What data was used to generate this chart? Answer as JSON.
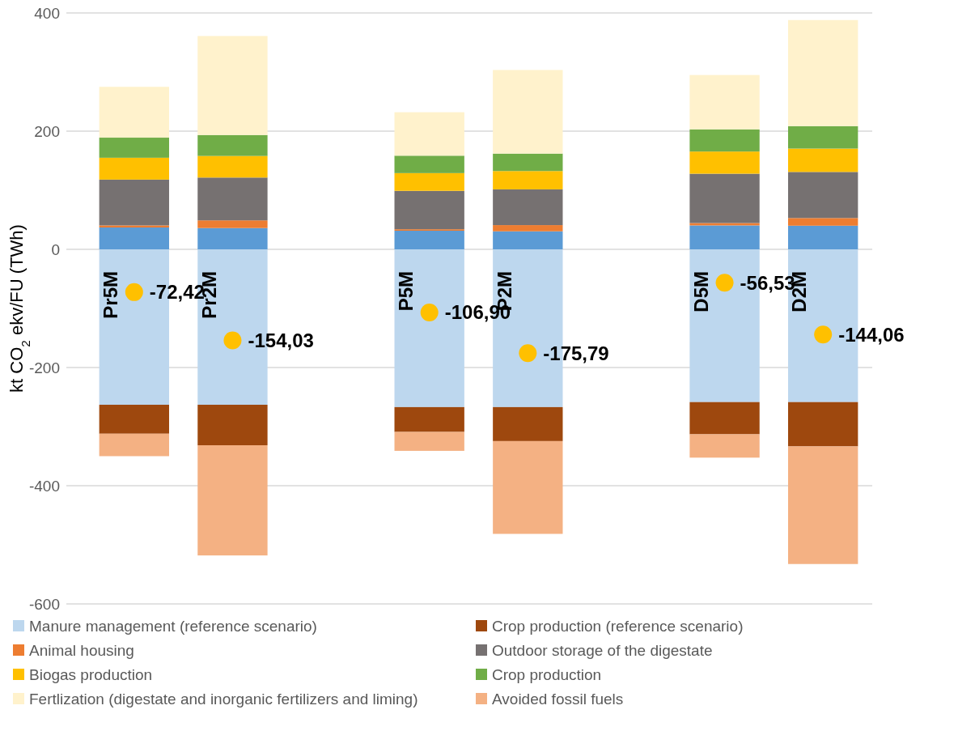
{
  "chart_data": {
    "type": "bar",
    "stacked": true,
    "ylabel": "kt CO$_{2}$ ekv/FU (TWh)",
    "categories": [
      "Pr5M",
      "Pr2M",
      null,
      "P5M",
      "P2M",
      null,
      "D5M",
      "D2M"
    ],
    "ylim": [
      -600,
      400
    ],
    "yticks": [
      -600,
      -400,
      -200,
      0,
      200,
      400
    ],
    "grid": "y",
    "legend": "bottom",
    "series": [
      {
        "color": "#5b9bd5",
        "values": [
          37,
          36,
          null,
          31.5,
          30.5,
          null,
          40.5,
          40
        ]
      },
      {
        "name": "Manure management (reference scenario)",
        "color": "#bdd7ee",
        "values": [
          -263,
          -263,
          null,
          -267,
          -267,
          null,
          -258.5,
          -258.5
        ]
      },
      {
        "name": "Crop production (reference scenario)",
        "color": "#9e480e",
        "values": [
          -49,
          -68.5,
          null,
          -42,
          -57.5,
          null,
          -54.5,
          -75
        ]
      },
      {
        "name": "Animal housing",
        "color": "#ed7d31",
        "values": [
          3.5,
          13,
          null,
          2.5,
          10.5,
          null,
          4,
          13
        ]
      },
      {
        "name": "Outdoor storage of the digestate",
        "color": "#767171",
        "values": [
          77.5,
          72.5,
          null,
          65,
          60.5,
          null,
          83.5,
          78
        ]
      },
      {
        "name": "Biogas production",
        "color": "#ffc000",
        "values": [
          37,
          36.5,
          null,
          30,
          31,
          null,
          37.5,
          39.5
        ]
      },
      {
        "name": "Crop production",
        "color": "#70ad47",
        "values": [
          34,
          35.5,
          null,
          29.5,
          29.5,
          null,
          37.5,
          38
        ]
      },
      {
        "name": "Fertlization (digestate and inorganic fertilizers and liming)",
        "color": "#fff2cc",
        "values": [
          86,
          167.5,
          null,
          73.5,
          141.5,
          null,
          92,
          179.5
        ]
      },
      {
        "name": "Avoided fossil fuels",
        "color": "#f4b183",
        "values": [
          -38,
          -186.5,
          null,
          -32,
          -157,
          null,
          -39.5,
          -199
        ]
      },
      {
        "type": "scatter",
        "color": "#ffc000",
        "values": [
          -72.42,
          -154.03,
          null,
          -106.9,
          -175.79,
          null,
          -56.53,
          -144.06
        ],
        "value_labels": [
          "-72,42",
          "-154,03",
          null,
          "-106,90",
          "-175,79",
          null,
          "-56,53",
          "-144,06"
        ]
      }
    ]
  }
}
